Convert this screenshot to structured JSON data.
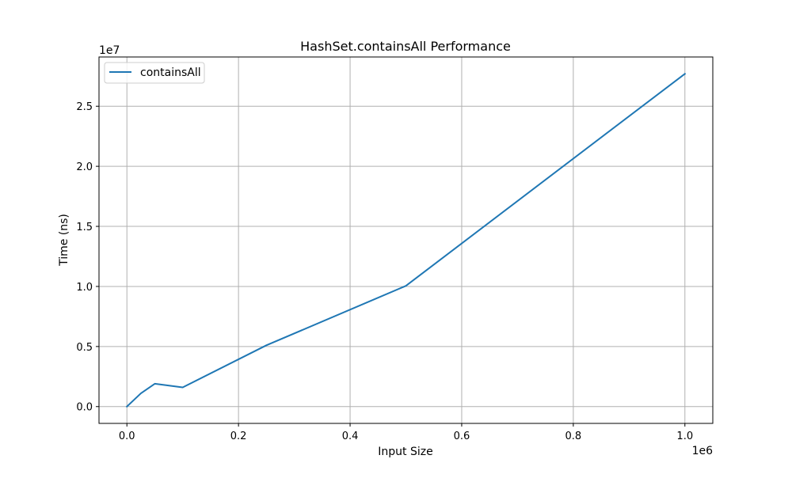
{
  "chart_data": {
    "type": "line",
    "title": "HashSet.containsAll Performance",
    "xlabel": "Input Size",
    "ylabel": "Time (ns)",
    "x_offset_label": "1e6",
    "y_offset_label": "1e7",
    "xlim": [
      -50000,
      1050000
    ],
    "ylim": [
      -1400000,
      29100000
    ],
    "xticks": [
      0,
      200000,
      400000,
      600000,
      800000,
      1000000
    ],
    "xtick_labels": [
      "0.0",
      "0.2",
      "0.4",
      "0.6",
      "0.8",
      "1.0"
    ],
    "yticks": [
      0,
      5000000,
      10000000,
      15000000,
      20000000,
      25000000
    ],
    "ytick_labels": [
      "0.0",
      "0.5",
      "1.0",
      "1.5",
      "2.0",
      "2.5"
    ],
    "grid": true,
    "legend_position": "upper-left",
    "series": [
      {
        "name": "containsAll",
        "color": "#1f77b4",
        "x": [
          10,
          25000,
          50000,
          100000,
          250000,
          500000,
          1000000
        ],
        "y": [
          0,
          1100000,
          1900000,
          1600000,
          5100000,
          10050000,
          27700000
        ]
      }
    ]
  }
}
